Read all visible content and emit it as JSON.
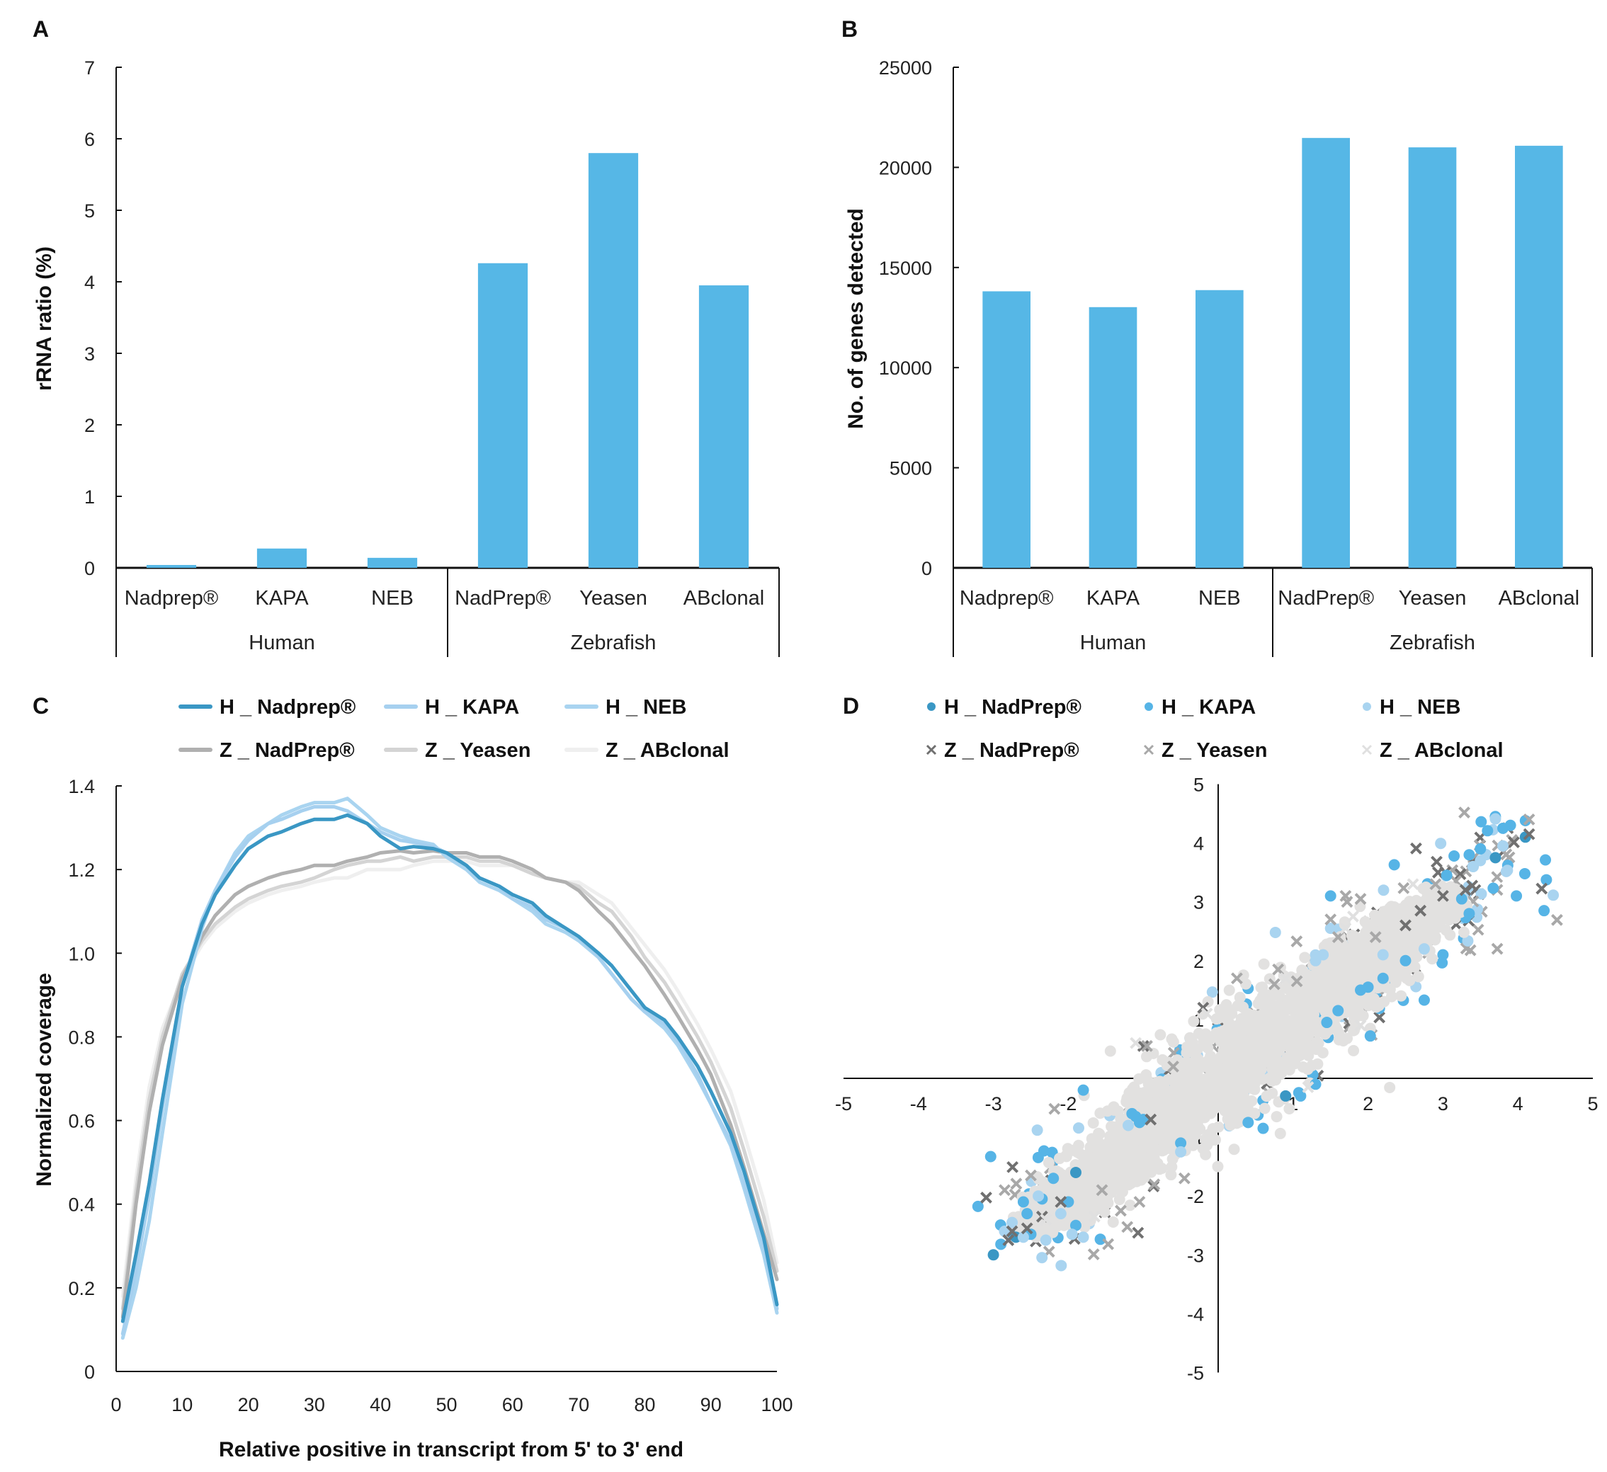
{
  "colors": {
    "bar": "#56b7e6",
    "axis": "#111111",
    "h_nadprep": "#3a97c4",
    "h_kapa": "#a6d0ef",
    "h_neb": "#a9d4f0",
    "z_nadprep": "#b0b0b0",
    "z_yeasen": "#d4d4d4",
    "z_abclonal": "#efefef",
    "d_h_nadprep": "#3a97c4",
    "d_h_kapa": "#56b4e6",
    "d_h_neb": "#a9d4f0",
    "d_z_nadprep": "#707070",
    "d_z_yeasen": "#a8a8a8",
    "d_z_abclonal": "#e0e0e0",
    "cloud": "#e2e1e0"
  },
  "chart_data": [
    {
      "id": "A",
      "panel_letter": "A",
      "type": "bar",
      "ylabel": "rRNA ratio (%)",
      "xlabel": "",
      "ylim": [
        0,
        7
      ],
      "yticks": [
        0,
        1,
        2,
        3,
        4,
        5,
        6,
        7
      ],
      "categories": [
        "Nadprep®",
        "KAPA",
        "NEB",
        "NadPrep®",
        "Yeasen",
        "ABclonal"
      ],
      "groups": [
        {
          "label": "Human",
          "span": [
            0,
            2
          ]
        },
        {
          "label": "Zebrafish",
          "span": [
            3,
            5
          ]
        }
      ],
      "values": [
        0.04,
        0.27,
        0.14,
        4.26,
        5.8,
        3.95
      ],
      "grid": false
    },
    {
      "id": "B",
      "panel_letter": "B",
      "type": "bar",
      "ylabel": "No. of genes detected",
      "xlabel": "",
      "ylim": [
        0,
        25000
      ],
      "yticks": [
        0,
        5000,
        10000,
        15000,
        20000,
        25000
      ],
      "categories": [
        "Nadprep®",
        "KAPA",
        "NEB",
        "NadPrep®",
        "Yeasen",
        "ABclonal"
      ],
      "groups": [
        {
          "label": "Human",
          "span": [
            0,
            2
          ]
        },
        {
          "label": "Zebrafish",
          "span": [
            3,
            5
          ]
        }
      ],
      "values": [
        13810,
        13020,
        13870,
        21470,
        21000,
        21080
      ],
      "grid": false
    },
    {
      "id": "C",
      "panel_letter": "C",
      "type": "line",
      "xlabel": "Relative positive in transcript from 5' to 3' end",
      "ylabel": "Normalized coverage",
      "xlim": [
        0,
        100
      ],
      "ylim": [
        0,
        1.4
      ],
      "xticks": [
        0,
        10,
        20,
        30,
        40,
        50,
        60,
        70,
        80,
        90,
        100
      ],
      "yticks": [
        "0",
        "0.2",
        "0.4",
        "0.6",
        "0.8",
        "1.0",
        "1.2",
        "1.4"
      ],
      "legend_position": "top",
      "grid": false,
      "x": [
        1,
        3,
        5,
        7,
        10,
        13,
        15,
        18,
        20,
        23,
        25,
        28,
        30,
        33,
        35,
        38,
        40,
        43,
        45,
        48,
        50,
        53,
        55,
        58,
        60,
        63,
        65,
        68,
        70,
        73,
        75,
        78,
        80,
        83,
        85,
        88,
        90,
        93,
        95,
        98,
        100
      ],
      "series": [
        {
          "name": "H _ Nadprep®",
          "color_key": "h_nadprep",
          "values": [
            0.12,
            0.28,
            0.45,
            0.65,
            0.92,
            1.07,
            1.14,
            1.21,
            1.25,
            1.28,
            1.29,
            1.31,
            1.32,
            1.32,
            1.33,
            1.31,
            1.28,
            1.25,
            1.255,
            1.25,
            1.24,
            1.21,
            1.18,
            1.16,
            1.14,
            1.12,
            1.09,
            1.06,
            1.04,
            1.0,
            0.97,
            0.91,
            0.87,
            0.84,
            0.8,
            0.73,
            0.67,
            0.57,
            0.48,
            0.32,
            0.16
          ]
        },
        {
          "name": "H _ KAPA",
          "color_key": "h_kapa",
          "values": [
            0.09,
            0.24,
            0.42,
            0.63,
            0.92,
            1.08,
            1.15,
            1.23,
            1.27,
            1.31,
            1.32,
            1.34,
            1.35,
            1.35,
            1.34,
            1.31,
            1.29,
            1.27,
            1.265,
            1.255,
            1.24,
            1.21,
            1.18,
            1.16,
            1.13,
            1.11,
            1.08,
            1.06,
            1.04,
            0.99,
            0.95,
            0.89,
            0.86,
            0.83,
            0.79,
            0.71,
            0.64,
            0.55,
            0.45,
            0.3,
            0.15
          ]
        },
        {
          "name": "H _ NEB",
          "color_key": "h_neb",
          "values": [
            0.08,
            0.2,
            0.36,
            0.57,
            0.88,
            1.06,
            1.15,
            1.24,
            1.28,
            1.31,
            1.33,
            1.35,
            1.36,
            1.36,
            1.37,
            1.33,
            1.3,
            1.28,
            1.27,
            1.26,
            1.23,
            1.2,
            1.17,
            1.15,
            1.13,
            1.1,
            1.07,
            1.05,
            1.03,
            0.99,
            0.95,
            0.89,
            0.86,
            0.82,
            0.78,
            0.7,
            0.64,
            0.54,
            0.44,
            0.28,
            0.14
          ]
        },
        {
          "name": "Z _ NadPrep®",
          "color_key": "z_nadprep",
          "values": [
            0.13,
            0.4,
            0.62,
            0.78,
            0.94,
            1.04,
            1.09,
            1.14,
            1.16,
            1.18,
            1.19,
            1.2,
            1.21,
            1.21,
            1.22,
            1.23,
            1.24,
            1.245,
            1.24,
            1.245,
            1.24,
            1.24,
            1.23,
            1.23,
            1.22,
            1.2,
            1.18,
            1.17,
            1.15,
            1.1,
            1.07,
            1.01,
            0.97,
            0.9,
            0.85,
            0.77,
            0.71,
            0.59,
            0.49,
            0.33,
            0.22
          ]
        },
        {
          "name": "Z _ Yeasen",
          "color_key": "z_yeasen",
          "values": [
            0.15,
            0.43,
            0.65,
            0.8,
            0.95,
            1.03,
            1.07,
            1.11,
            1.13,
            1.15,
            1.16,
            1.17,
            1.18,
            1.2,
            1.21,
            1.22,
            1.22,
            1.23,
            1.22,
            1.23,
            1.23,
            1.23,
            1.22,
            1.22,
            1.21,
            1.19,
            1.18,
            1.17,
            1.16,
            1.12,
            1.1,
            1.04,
            0.99,
            0.93,
            0.88,
            0.8,
            0.74,
            0.63,
            0.53,
            0.37,
            0.24
          ]
        },
        {
          "name": "Z _ ABclonal",
          "color_key": "z_abclonal",
          "values": [
            0.18,
            0.46,
            0.68,
            0.82,
            0.94,
            1.02,
            1.06,
            1.1,
            1.12,
            1.14,
            1.15,
            1.16,
            1.17,
            1.18,
            1.18,
            1.2,
            1.2,
            1.2,
            1.21,
            1.22,
            1.22,
            1.22,
            1.21,
            1.21,
            1.21,
            1.19,
            1.18,
            1.17,
            1.17,
            1.14,
            1.12,
            1.06,
            1.02,
            0.96,
            0.91,
            0.83,
            0.77,
            0.67,
            0.57,
            0.41,
            0.26
          ]
        }
      ]
    },
    {
      "id": "D",
      "panel_letter": "D",
      "type": "scatter",
      "xlabel": "",
      "ylabel": "",
      "xlim": [
        -5,
        5
      ],
      "ylim": [
        -5,
        5
      ],
      "xticks": [
        -5,
        -4,
        -3,
        -2,
        -1,
        0,
        1,
        2,
        3,
        4,
        5
      ],
      "yticks": [
        -5,
        -4,
        -3,
        -2,
        -1,
        0,
        1,
        2,
        3,
        4,
        5
      ],
      "legend_position": "top",
      "grid": false,
      "cloud": {
        "from": [
          -2.6,
          -2.6
        ],
        "to": [
          3.2,
          3.2
        ],
        "half_width": 0.45,
        "count": 2600
      },
      "series": [
        {
          "name": "H _ NadPrep®",
          "marker": "circle",
          "color_key": "d_h_nadprep",
          "points": [
            [
              -3.0,
              -3.0
            ],
            [
              4.1,
              4.1
            ],
            [
              3.7,
              3.75
            ],
            [
              -2.7,
              -2.7
            ],
            [
              0.9,
              -0.3
            ],
            [
              -1.9,
              -1.6
            ]
          ]
        },
        {
          "name": "H _ KAPA",
          "marker": "circle",
          "color_key": "d_h_kapa",
          "points": [
            [
              2.35,
              3.63
            ],
            [
              1.5,
              3.1
            ],
            [
              3.98,
              3.1
            ],
            [
              2.75,
              1.33
            ],
            [
              2.03,
              0.72
            ],
            [
              3.0,
              2.1
            ],
            [
              3.35,
              2.8
            ],
            [
              3.35,
              3.8
            ],
            [
              3.5,
              3.9
            ],
            [
              3.9,
              4.3
            ],
            [
              4.1,
              4.38
            ],
            [
              3.8,
              4.25
            ],
            [
              -1.1,
              -0.65
            ],
            [
              -1.0,
              -0.7
            ],
            [
              -1.15,
              -0.6
            ],
            [
              -1.05,
              -0.75
            ],
            [
              1.1,
              -0.3
            ],
            [
              1.3,
              -0.1
            ],
            [
              0.6,
              -0.85
            ],
            [
              0.4,
              -0.75
            ],
            [
              -2.9,
              -2.82
            ],
            [
              -2.55,
              -2.3
            ],
            [
              -0.5,
              -1.1
            ],
            [
              -2.2,
              -1.7
            ],
            [
              -2.35,
              -2.05
            ],
            [
              -2.6,
              -2.1
            ],
            [
              -1.9,
              -2.5
            ],
            [
              2.0,
              1.55
            ],
            [
              2.2,
              1.7
            ],
            [
              1.9,
              1.5
            ],
            [
              3.05,
              3.45
            ],
            [
              3.25,
              3.05
            ],
            [
              -1.8,
              -0.2
            ],
            [
              1.6,
              1.15
            ],
            [
              1.45,
              0.95
            ],
            [
              -2.0,
              -2.1
            ],
            [
              -2.5,
              -2.65
            ],
            [
              2.5,
              2.0
            ]
          ]
        },
        {
          "name": "H _ NEB",
          "marker": "circle",
          "color_key": "d_h_neb",
          "points": [
            [
              1.5,
              2.55
            ],
            [
              2.75,
              2.2
            ],
            [
              3.5,
              3.7
            ],
            [
              3.4,
              3.6
            ],
            [
              -2.85,
              -2.6
            ],
            [
              -1.8,
              -2.7
            ],
            [
              -0.5,
              -1.25
            ],
            [
              -2.6,
              -2.7
            ],
            [
              -2.75,
              -2.45
            ],
            [
              -2.4,
              -2.0
            ],
            [
              -2.1,
              -2.3
            ],
            [
              -1.2,
              -0.8
            ],
            [
              1.4,
              2.1
            ],
            [
              1.3,
              2.0
            ],
            [
              2.2,
              2.1
            ],
            [
              -2.3,
              -2.75
            ],
            [
              -1.95,
              -2.65
            ],
            [
              3.8,
              3.95
            ]
          ]
        },
        {
          "name": "Z _ NadPrep®",
          "marker": "cross",
          "color_key": "d_z_nadprep",
          "points": [
            [
              -2.8,
              -2.75
            ],
            [
              -2.55,
              -2.55
            ],
            [
              -2.35,
              -2.35
            ],
            [
              -2.1,
              -2.1
            ],
            [
              4.15,
              4.15
            ],
            [
              3.0,
              3.1
            ],
            [
              3.3,
              3.2
            ],
            [
              -0.2,
              1.2
            ],
            [
              -1.0,
              0.55
            ],
            [
              -2.75,
              -2.6
            ],
            [
              2.5,
              2.6
            ],
            [
              2.7,
              2.85
            ],
            [
              -0.9,
              -0.7
            ]
          ]
        },
        {
          "name": "Z _ Yeasen",
          "marker": "cross",
          "color_key": "d_z_yeasen",
          "points": [
            [
              1.7,
              3.1
            ],
            [
              1.72,
              3.0
            ],
            [
              1.9,
              3.05
            ],
            [
              0.8,
              1.85
            ],
            [
              0.25,
              1.7
            ],
            [
              -0.95,
              0.55
            ],
            [
              1.5,
              2.7
            ],
            [
              2.9,
              3.3
            ],
            [
              4.15,
              4.4
            ],
            [
              -2.85,
              -1.9
            ],
            [
              -1.55,
              -1.9
            ],
            [
              -1.3,
              -2.25
            ],
            [
              -1.05,
              -2.1
            ],
            [
              -0.45,
              -1.7
            ],
            [
              2.1,
              2.4
            ],
            [
              1.05,
              1.65
            ],
            [
              0.75,
              1.6
            ],
            [
              1.6,
              2.4
            ],
            [
              -2.5,
              -1.65
            ],
            [
              -0.6,
              0.2
            ]
          ]
        },
        {
          "name": "Z _ ABclonal",
          "marker": "cross",
          "color_key": "d_z_abclonal",
          "points": [
            [
              1.8,
              2.75
            ],
            [
              1.7,
              2.55
            ],
            [
              1.9,
              0.9
            ],
            [
              -1.1,
              0.6
            ],
            [
              -0.15,
              1.1
            ],
            [
              -2.3,
              -2.4
            ],
            [
              -1.65,
              -2.35
            ],
            [
              1.2,
              -0.15
            ],
            [
              2.6,
              3.3
            ],
            [
              0.9,
              1.7
            ]
          ]
        }
      ]
    }
  ]
}
